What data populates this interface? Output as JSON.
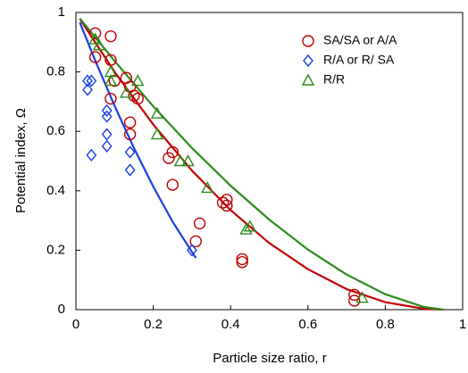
{
  "chart_data": {
    "type": "scatter",
    "xlabel": "Particle size ratio, r",
    "ylabel": "Potential index, Ω",
    "xlim": [
      0,
      1
    ],
    "ylim": [
      0,
      1
    ],
    "xticks": [
      0,
      0.2,
      0.4,
      0.6,
      0.8,
      1
    ],
    "yticks": [
      0,
      0.2,
      0.4,
      0.6,
      0.8,
      1
    ],
    "legend": "upper right",
    "series": [
      {
        "name": "SA/SA or A/A",
        "color": "#c00000",
        "marker": "circle",
        "x": [
          0.05,
          0.05,
          0.09,
          0.09,
          0.1,
          0.09,
          0.13,
          0.14,
          0.15,
          0.16,
          0.14,
          0.14,
          0.25,
          0.24,
          0.25,
          0.32,
          0.31,
          0.38,
          0.39,
          0.39,
          0.43,
          0.43,
          0.72,
          0.72
        ],
        "values": [
          0.93,
          0.85,
          0.92,
          0.84,
          0.77,
          0.71,
          0.78,
          0.75,
          0.72,
          0.71,
          0.63,
          0.59,
          0.53,
          0.51,
          0.42,
          0.29,
          0.23,
          0.36,
          0.37,
          0.35,
          0.17,
          0.16,
          0.05,
          0.03
        ],
        "fit": {
          "x": [
            0.01,
            0.1,
            0.2,
            0.3,
            0.4,
            0.5,
            0.6,
            0.7,
            0.8,
            0.9,
            0.95
          ],
          "values": [
            0.979,
            0.8,
            0.623,
            0.468,
            0.335,
            0.224,
            0.136,
            0.069,
            0.025,
            0.003,
            0
          ]
        }
      },
      {
        "name": "R/A or R/ SA",
        "color": "#1a3fe0",
        "marker": "diamond",
        "x": [
          0.03,
          0.04,
          0.03,
          0.04,
          0.08,
          0.08,
          0.08,
          0.08,
          0.14,
          0.14,
          0.3
        ],
        "values": [
          0.77,
          0.77,
          0.74,
          0.52,
          0.67,
          0.65,
          0.59,
          0.55,
          0.53,
          0.47,
          0.2
        ],
        "fit": {
          "x": [
            0.01,
            0.05,
            0.1,
            0.15,
            0.2,
            0.25,
            0.31
          ],
          "values": [
            0.967,
            0.838,
            0.686,
            0.544,
            0.414,
            0.296,
            0.174
          ]
        }
      },
      {
        "name": "R/R",
        "color": "#2e8b1f",
        "marker": "triangle",
        "x": [
          0.05,
          0.06,
          0.09,
          0.09,
          0.13,
          0.16,
          0.21,
          0.21,
          0.27,
          0.29,
          0.34,
          0.44,
          0.45,
          0.74
        ],
        "values": [
          0.91,
          0.89,
          0.8,
          0.77,
          0.73,
          0.77,
          0.66,
          0.59,
          0.5,
          0.5,
          0.41,
          0.27,
          0.28,
          0.04
        ],
        "fit": {
          "x": [
            0.01,
            0.1,
            0.2,
            0.3,
            0.4,
            0.5,
            0.6,
            0.7,
            0.8,
            0.9,
            0.95
          ],
          "values": [
            0.98,
            0.837,
            0.684,
            0.544,
            0.417,
            0.303,
            0.202,
            0.118,
            0.052,
            0.009,
            0
          ]
        }
      }
    ]
  }
}
